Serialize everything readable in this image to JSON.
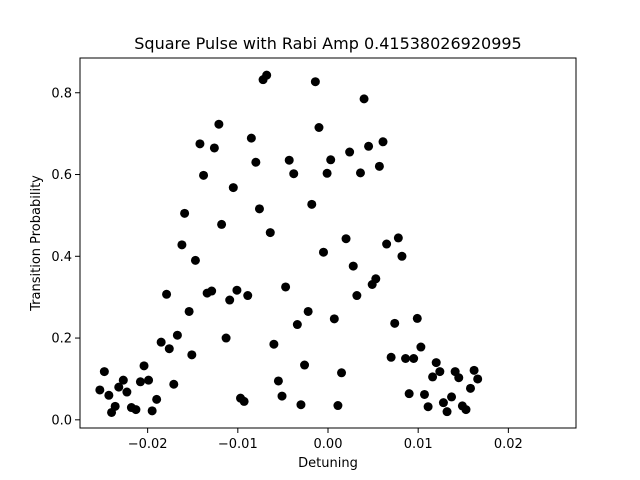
{
  "chart_data": {
    "type": "scatter",
    "title": "Square Pulse with Rabi Amp 0.41538026920995",
    "xlabel": "Detuning",
    "ylabel": "Transition Probability",
    "xlim": [
      -0.0275,
      0.0275
    ],
    "ylim": [
      -0.02,
      0.885
    ],
    "grid": false,
    "marker_color": "#000000",
    "x_ticks": [
      {
        "value": -0.02,
        "label": "−0.02"
      },
      {
        "value": -0.01,
        "label": "−0.01"
      },
      {
        "value": 0.0,
        "label": "0.00"
      },
      {
        "value": 0.01,
        "label": "0.01"
      },
      {
        "value": 0.02,
        "label": "0.02"
      }
    ],
    "y_ticks": [
      {
        "value": 0.0,
        "label": "0.0"
      },
      {
        "value": 0.2,
        "label": "0.2"
      },
      {
        "value": 0.4,
        "label": "0.4"
      },
      {
        "value": 0.6,
        "label": "0.6"
      },
      {
        "value": 0.8,
        "label": "0.8"
      }
    ],
    "points": [
      [
        -0.0253,
        0.073
      ],
      [
        -0.0248,
        0.118
      ],
      [
        -0.0243,
        0.06
      ],
      [
        -0.024,
        0.018
      ],
      [
        -0.0236,
        0.033
      ],
      [
        -0.0232,
        0.08
      ],
      [
        -0.0227,
        0.097
      ],
      [
        -0.0223,
        0.068
      ],
      [
        -0.0218,
        0.03
      ],
      [
        -0.0213,
        0.025
      ],
      [
        -0.0208,
        0.093
      ],
      [
        -0.0204,
        0.132
      ],
      [
        -0.0199,
        0.097
      ],
      [
        -0.0195,
        0.022
      ],
      [
        -0.019,
        0.05
      ],
      [
        -0.0185,
        0.19
      ],
      [
        -0.0179,
        0.307
      ],
      [
        -0.0176,
        0.174
      ],
      [
        -0.0171,
        0.087
      ],
      [
        -0.0167,
        0.207
      ],
      [
        -0.0162,
        0.428
      ],
      [
        -0.0159,
        0.505
      ],
      [
        -0.0154,
        0.265
      ],
      [
        -0.0151,
        0.159
      ],
      [
        -0.0147,
        0.39
      ],
      [
        -0.0142,
        0.675
      ],
      [
        -0.0138,
        0.598
      ],
      [
        -0.0134,
        0.31
      ],
      [
        -0.0129,
        0.315
      ],
      [
        -0.0126,
        0.665
      ],
      [
        -0.0121,
        0.723
      ],
      [
        -0.0118,
        0.478
      ],
      [
        -0.0113,
        0.2
      ],
      [
        -0.0109,
        0.293
      ],
      [
        -0.0105,
        0.568
      ],
      [
        -0.0101,
        0.317
      ],
      [
        -0.0097,
        0.053
      ],
      [
        -0.0093,
        0.045
      ],
      [
        -0.0089,
        0.304
      ],
      [
        -0.0085,
        0.689
      ],
      [
        -0.008,
        0.63
      ],
      [
        -0.0076,
        0.516
      ],
      [
        -0.0072,
        0.832
      ],
      [
        -0.0068,
        0.843
      ],
      [
        -0.0064,
        0.458
      ],
      [
        -0.006,
        0.185
      ],
      [
        -0.0055,
        0.095
      ],
      [
        -0.0051,
        0.058
      ],
      [
        -0.0047,
        0.325
      ],
      [
        -0.0043,
        0.635
      ],
      [
        -0.0038,
        0.602
      ],
      [
        -0.0034,
        0.233
      ],
      [
        -0.003,
        0.037
      ],
      [
        -0.0026,
        0.134
      ],
      [
        -0.0022,
        0.265
      ],
      [
        -0.0018,
        0.527
      ],
      [
        -0.0014,
        0.827
      ],
      [
        -0.001,
        0.715
      ],
      [
        -0.0005,
        0.41
      ],
      [
        -0.0001,
        0.603
      ],
      [
        0.0003,
        0.636
      ],
      [
        0.0007,
        0.247
      ],
      [
        0.0011,
        0.035
      ],
      [
        0.0015,
        0.115
      ],
      [
        0.002,
        0.443
      ],
      [
        0.0024,
        0.655
      ],
      [
        0.0028,
        0.376
      ],
      [
        0.0032,
        0.304
      ],
      [
        0.0036,
        0.604
      ],
      [
        0.004,
        0.785
      ],
      [
        0.0045,
        0.669
      ],
      [
        0.0049,
        0.331
      ],
      [
        0.0053,
        0.345
      ],
      [
        0.0057,
        0.62
      ],
      [
        0.0061,
        0.68
      ],
      [
        0.0065,
        0.43
      ],
      [
        0.007,
        0.153
      ],
      [
        0.0074,
        0.236
      ],
      [
        0.0078,
        0.445
      ],
      [
        0.0082,
        0.4
      ],
      [
        0.0086,
        0.15
      ],
      [
        0.009,
        0.064
      ],
      [
        0.0095,
        0.15
      ],
      [
        0.0099,
        0.248
      ],
      [
        0.0103,
        0.178
      ],
      [
        0.0107,
        0.062
      ],
      [
        0.0111,
        0.032
      ],
      [
        0.0116,
        0.105
      ],
      [
        0.012,
        0.14
      ],
      [
        0.0124,
        0.118
      ],
      [
        0.0128,
        0.042
      ],
      [
        0.0132,
        0.02
      ],
      [
        0.0137,
        0.056
      ],
      [
        0.0141,
        0.118
      ],
      [
        0.0145,
        0.103
      ],
      [
        0.0149,
        0.034
      ],
      [
        0.0153,
        0.025
      ],
      [
        0.0158,
        0.077
      ],
      [
        0.0162,
        0.121
      ],
      [
        0.0166,
        0.1
      ]
    ]
  }
}
